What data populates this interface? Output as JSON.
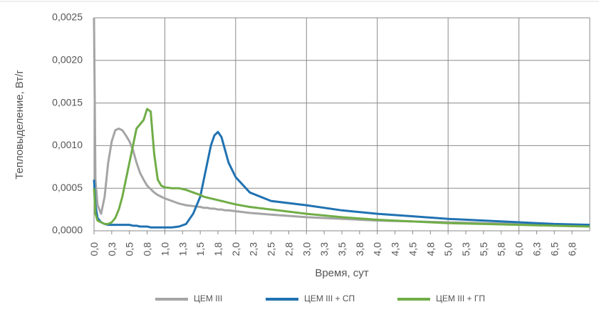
{
  "chart_data": {
    "type": "line",
    "y_label": "Тепловыделение, Вт/г",
    "x_label": "Время, сут",
    "x": [
      0,
      0.02,
      0.05,
      0.1,
      0.15,
      0.2,
      0.25,
      0.3,
      0.35,
      0.4,
      0.45,
      0.5,
      0.55,
      0.6,
      0.65,
      0.7,
      0.75,
      0.8,
      0.85,
      0.9,
      0.95,
      1.0,
      1.1,
      1.2,
      1.3,
      1.4,
      1.5,
      1.55,
      1.6,
      1.65,
      1.7,
      1.75,
      1.8,
      1.85,
      1.9,
      2.0,
      2.2,
      2.5,
      3.0,
      3.5,
      4.0,
      4.5,
      5.0,
      5.5,
      6.0,
      6.5,
      7.0
    ],
    "series": [
      {
        "name": "ЦЕМ III",
        "color": "#a5a5a5",
        "values": [
          0.0025,
          0.0006,
          0.0003,
          0.0002,
          0.0004,
          0.0008,
          0.00105,
          0.00118,
          0.0012,
          0.00118,
          0.00112,
          0.00105,
          0.00095,
          0.0008,
          0.00068,
          0.0006,
          0.00053,
          0.00049,
          0.00045,
          0.00042,
          0.0004,
          0.00038,
          0.00035,
          0.00032,
          0.0003,
          0.00029,
          0.00028,
          0.00027,
          0.00027,
          0.00026,
          0.00026,
          0.00025,
          0.00025,
          0.00024,
          0.00024,
          0.00023,
          0.00021,
          0.00019,
          0.00016,
          0.00014,
          0.00012,
          0.00011,
          0.0001,
          9e-05,
          8e-05,
          7e-05,
          6e-05
        ]
      },
      {
        "name": "ЦЕМ III + СП",
        "color": "#2072b2",
        "values": [
          0.0006,
          0.0003,
          0.00015,
          0.0001,
          8e-05,
          7e-05,
          7e-05,
          7e-05,
          7e-05,
          7e-05,
          7e-05,
          7e-05,
          6e-05,
          6e-05,
          5e-05,
          5e-05,
          5e-05,
          4e-05,
          4e-05,
          4e-05,
          4e-05,
          4e-05,
          4e-05,
          5e-05,
          8e-05,
          0.0002,
          0.0004,
          0.0006,
          0.0008,
          0.001,
          0.00112,
          0.00116,
          0.0011,
          0.00095,
          0.0008,
          0.00063,
          0.00045,
          0.00035,
          0.0003,
          0.00024,
          0.0002,
          0.00017,
          0.00014,
          0.00012,
          0.0001,
          8e-05,
          7e-05
        ]
      },
      {
        "name": "ЦЕМ III + ГП",
        "color": "#70ad47",
        "values": [
          0.0005,
          0.0002,
          0.00012,
          0.0001,
          8e-05,
          8e-05,
          0.0001,
          0.00015,
          0.00025,
          0.0004,
          0.0006,
          0.0008,
          0.001,
          0.0012,
          0.00125,
          0.0013,
          0.00143,
          0.0014,
          0.0009,
          0.0006,
          0.00053,
          0.00051,
          0.0005,
          0.0005,
          0.00048,
          0.00045,
          0.00042,
          0.0004,
          0.00039,
          0.00038,
          0.00037,
          0.00036,
          0.00035,
          0.00034,
          0.00033,
          0.00031,
          0.00028,
          0.00025,
          0.0002,
          0.00016,
          0.00013,
          0.00011,
          9e-05,
          8e-05,
          7e-05,
          6e-05,
          5e-05
        ]
      }
    ],
    "xlim": [
      0,
      7
    ],
    "xticks": [
      {
        "value": 0,
        "label": "0,0"
      },
      {
        "value": 0.25,
        "label": "0,3"
      },
      {
        "value": 0.5,
        "label": "0,5"
      },
      {
        "value": 0.75,
        "label": "0,8"
      },
      {
        "value": 1,
        "label": "1,0"
      },
      {
        "value": 1.25,
        "label": "1,3"
      },
      {
        "value": 1.5,
        "label": "1,5"
      },
      {
        "value": 1.75,
        "label": "1,8"
      },
      {
        "value": 2,
        "label": "2,0"
      },
      {
        "value": 2.25,
        "label": "2,3"
      },
      {
        "value": 2.5,
        "label": "2,5"
      },
      {
        "value": 2.75,
        "label": "2,8"
      },
      {
        "value": 3,
        "label": "3,0"
      },
      {
        "value": 3.25,
        "label": "3,3"
      },
      {
        "value": 3.5,
        "label": "3,5"
      },
      {
        "value": 3.75,
        "label": "3,8"
      },
      {
        "value": 4,
        "label": "4,0"
      },
      {
        "value": 4.25,
        "label": "4,3"
      },
      {
        "value": 4.5,
        "label": "4,5"
      },
      {
        "value": 4.75,
        "label": "4,8"
      },
      {
        "value": 5,
        "label": "5,0"
      },
      {
        "value": 5.25,
        "label": "5,3"
      },
      {
        "value": 5.5,
        "label": "5,5"
      },
      {
        "value": 5.75,
        "label": "5,8"
      },
      {
        "value": 6,
        "label": "6,0"
      },
      {
        "value": 6.25,
        "label": "6,3"
      },
      {
        "value": 6.5,
        "label": "6,5"
      },
      {
        "value": 6.75,
        "label": "6,8"
      }
    ],
    "ylim": [
      0,
      0.0025
    ],
    "yticks": [
      {
        "value": 0,
        "label": "0,0000"
      },
      {
        "value": 0.0005,
        "label": "0,0005"
      },
      {
        "value": 0.001,
        "label": "0,0010"
      },
      {
        "value": 0.0015,
        "label": "0,0015"
      },
      {
        "value": 0.002,
        "label": "0,0020"
      },
      {
        "value": 0.0025,
        "label": "0,0025"
      }
    ],
    "grid": true,
    "legend": "bottom"
  }
}
